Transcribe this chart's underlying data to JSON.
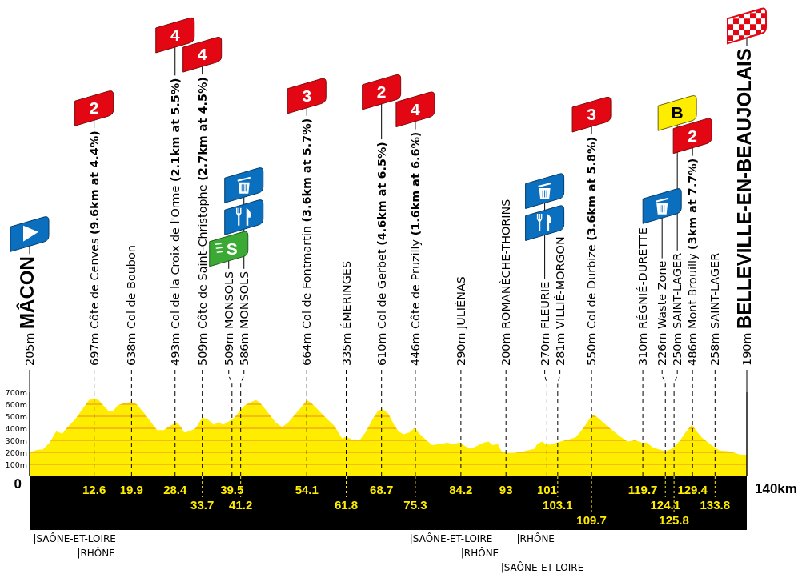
{
  "chart_data": {
    "type": "area",
    "color": "#ffed00",
    "x": [
      0,
      1.4,
      2.6,
      3.9,
      5.2,
      6.4,
      7.2,
      8.9,
      10.4,
      11.6,
      12.6,
      13.6,
      14.4,
      15.4,
      16.2,
      17.2,
      18.4,
      19.9,
      20.9,
      22.4,
      23.9,
      24.9,
      26.2,
      27.4,
      28.7,
      29.4,
      30.2,
      31.2,
      32.4,
      33.7,
      34.9,
      35.9,
      36.9,
      37.8,
      39,
      40,
      41,
      42,
      43,
      44.2,
      45,
      46,
      47,
      48,
      49.3,
      50.5,
      52,
      53.5,
      54.1,
      55,
      56.5,
      58,
      59.5,
      61,
      61.8,
      63,
      64.5,
      65.7,
      67,
      68,
      68.8,
      70,
      71,
      72,
      73,
      74.1,
      75.2,
      76.1,
      77.1,
      78.6,
      80.1,
      81.6,
      82.6,
      84,
      85.1,
      86.1,
      87.4,
      88.6,
      89.6,
      90.4,
      91.4,
      92.1,
      93.1,
      94.6,
      96.1,
      97.6,
      98.6,
      99.1,
      100.1,
      100.8,
      101.8,
      103.2,
      104.1,
      105.1,
      106.6,
      107.6,
      108.7,
      109.9,
      110.9,
      112.2,
      113.7,
      115.2,
      116.7,
      118.2,
      119.6,
      120.5,
      121.7,
      123.2,
      124.2,
      125.4,
      126.9,
      128.2,
      129.3,
      130.2,
      131.2,
      132.5,
      133.6,
      134.7,
      136.2,
      137.7,
      138.7,
      140
    ],
    "values": [
      200,
      220,
      225,
      280,
      375,
      355,
      400,
      475,
      565,
      635,
      650,
      630,
      590,
      545,
      540,
      590,
      610,
      620,
      600,
      525,
      440,
      385,
      385,
      420,
      450,
      420,
      365,
      375,
      400,
      490,
      470,
      430,
      450,
      430,
      460,
      490,
      545,
      590,
      615,
      635,
      610,
      560,
      505,
      450,
      410,
      450,
      525,
      600,
      635,
      610,
      545,
      480,
      420,
      315,
      330,
      305,
      305,
      375,
      480,
      545,
      560,
      525,
      440,
      375,
      350,
      365,
      405,
      355,
      315,
      260,
      270,
      280,
      270,
      280,
      250,
      230,
      255,
      280,
      290,
      260,
      270,
      210,
      195,
      195,
      205,
      220,
      230,
      270,
      290,
      265,
      265,
      285,
      295,
      305,
      325,
      375,
      440,
      515,
      490,
      440,
      385,
      335,
      290,
      300,
      280,
      280,
      240,
      220,
      210,
      230,
      295,
      375,
      430,
      375,
      325,
      280,
      245,
      215,
      210,
      195,
      180,
      180
    ],
    "xlim": [
      0,
      140
    ],
    "ylim": [
      0,
      700
    ],
    "xticks": [
      12.6,
      19.9,
      28.4,
      39.5,
      54.1,
      68.7,
      84.2,
      93,
      101,
      119.7,
      129.4
    ],
    "yticks": [
      {
        "value": 100,
        "label": "100m"
      },
      {
        "value": 200,
        "label": "200m"
      },
      {
        "value": 300,
        "label": "300m"
      },
      {
        "value": 400,
        "label": "400m"
      },
      {
        "value": 500,
        "label": "500m"
      },
      {
        "value": 600,
        "label": "600m"
      },
      {
        "value": 700,
        "label": "700m"
      }
    ],
    "grid": "y",
    "ref_lines": [
      {
        "axis": "x",
        "value": 0,
        "label": "205m MÂCON",
        "line_style": "solid"
      },
      {
        "axis": "x",
        "value": 12.6,
        "label": "697m Côte de Cenves (9.6km at 4.4%)",
        "line_style": "dashed"
      },
      {
        "axis": "x",
        "value": 19.9,
        "label": "638m Col de Boubon",
        "line_style": "dashed"
      },
      {
        "axis": "x",
        "value": 28.4,
        "label": "493m Col de la Croix de l'Orme (2.1km at 5.5%)",
        "line_style": "dashed"
      },
      {
        "axis": "x",
        "value": 33.7,
        "label": "509m Côte de Saint-Christophe (2.7km at 4.5%)",
        "line_style": "dashed"
      },
      {
        "axis": "x",
        "value": 39.5,
        "label": "509m MONSOLS",
        "line_style": "dashed"
      },
      {
        "axis": "x",
        "value": 41.2,
        "label": "586m MONSOLS",
        "line_style": "dashed"
      },
      {
        "axis": "x",
        "value": 54.1,
        "label": "664m Col de Fontmartin (3.6km at 5.7%)",
        "line_style": "dashed"
      },
      {
        "axis": "x",
        "value": 61.8,
        "label": "335m ÉMERINGES",
        "line_style": "dashed"
      },
      {
        "axis": "x",
        "value": 68.7,
        "label": "610m Col de Gerbet (4.6km at 6.5%)",
        "line_style": "dashed"
      },
      {
        "axis": "x",
        "value": 75.3,
        "label": "446m Côte de Pruzilly (1.6km at 6.6%)",
        "line_style": "dashed"
      },
      {
        "axis": "x",
        "value": 84.2,
        "label": "290m JULIÉNAS",
        "line_style": "dashed"
      },
      {
        "axis": "x",
        "value": 93,
        "label": "200m ROMANÈCHE-THORINS",
        "line_style": "dashed"
      },
      {
        "axis": "x",
        "value": 101,
        "label": "270m FLEURIE",
        "line_style": "dashed"
      },
      {
        "axis": "x",
        "value": 103.1,
        "label": "281m VILLIÉ-MORGON",
        "line_style": "dashed"
      },
      {
        "axis": "x",
        "value": 109.7,
        "label": "550m Col de Durbize (3.6km at 5.8%)",
        "line_style": "dashed"
      },
      {
        "axis": "x",
        "value": 119.7,
        "label": "310m RÉGNIÉ-DURETTE",
        "line_style": "dashed"
      },
      {
        "axis": "x",
        "value": 124.1,
        "label": "226m Waste Zone",
        "line_style": "dashed"
      },
      {
        "axis": "x",
        "value": 125.8,
        "label": "250m SAINT-LAGER",
        "line_style": "dashed"
      },
      {
        "axis": "x",
        "value": 129.4,
        "label": "486m Mont Brouilly (3km at 7.7%)",
        "line_style": "dashed"
      },
      {
        "axis": "x",
        "value": 133.8,
        "label": "258m SAINT-LAGER",
        "line_style": "dashed"
      },
      {
        "axis": "x",
        "value": 140,
        "label": "190m BELLEVILLE-EN-BEAUJOLAIS",
        "line_style": "solid"
      }
    ],
    "annotations": [
      "2",
      "4",
      "4",
      "S",
      "3",
      "2",
      "4",
      "3",
      "B",
      "2",
      "|SAÔNE-ET-LOIRE",
      "|RHÔNE",
      "|SAÔNE-ET-LOIRE",
      "|RHÔNE",
      "|SAÔNE-ET-LOIRE",
      "|RHÔNE",
      "0",
      "140km",
      {
        "text": "33.7",
        "x": 33.7,
        "y": 0
      },
      {
        "text": "41.2",
        "x": 41.2,
        "y": 0
      },
      {
        "text": "61.8",
        "x": 61.8,
        "y": 0
      },
      {
        "text": "75.3",
        "x": 75.3,
        "y": 0
      },
      {
        "text": "103.1",
        "x": 103.1,
        "y": 0
      },
      {
        "text": "109.7",
        "x": 109.7,
        "y": 0
      },
      {
        "text": "124.1",
        "x": 124.1,
        "y": 0
      },
      {
        "text": "125.8",
        "x": 125.8,
        "y": 0
      },
      {
        "text": "133.8",
        "x": 133.8,
        "y": 0
      }
    ]
  }
}
